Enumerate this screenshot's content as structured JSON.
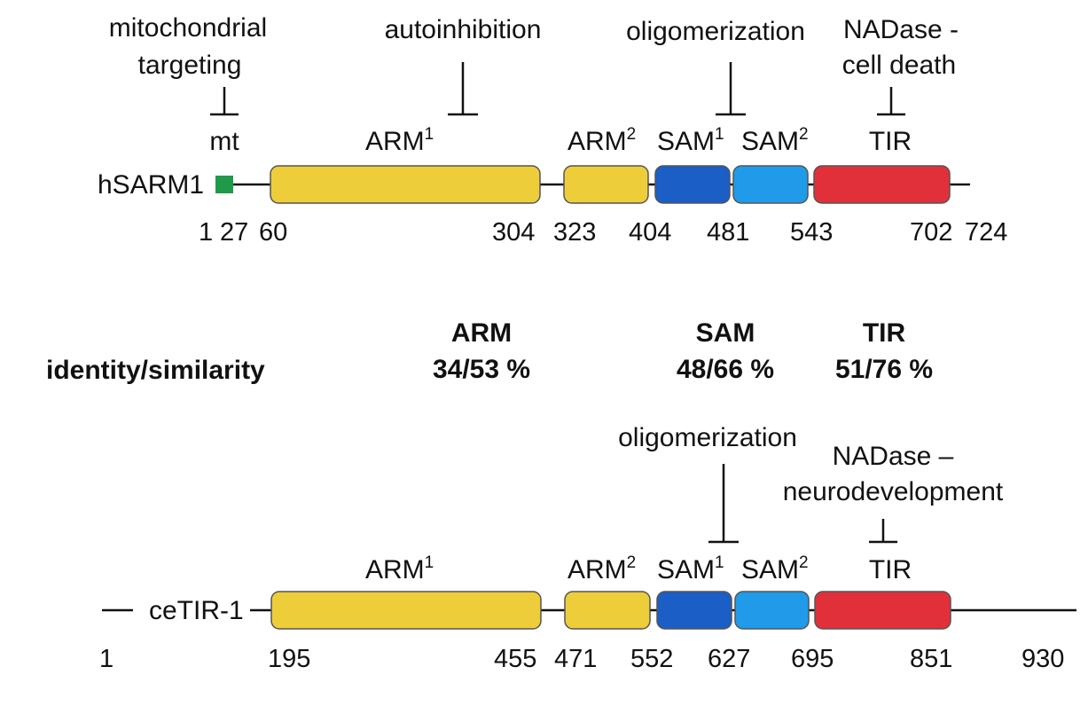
{
  "colors": {
    "mt": "#1f9a4a",
    "arm": "#eecd3a",
    "sam1": "#1a5ec6",
    "sam2": "#1f9bea",
    "tir": "#e2303a",
    "line": "#111111"
  },
  "hsarm1": {
    "name": "hSARM1",
    "domain_labels": {
      "mt": "mt",
      "arm1": "ARM",
      "arm1_sup": "1",
      "arm2": "ARM",
      "arm2_sup": "2",
      "sam1": "SAM",
      "sam1_sup": "1",
      "sam2": "SAM",
      "sam2_sup": "2",
      "tir": "TIR"
    },
    "functions": {
      "mito_line1": "mitochondrial",
      "mito_line2": "targeting",
      "autoinhibition": "autoinhibition",
      "oligomerization": "oligomerization",
      "nadase_line1": "NADase -",
      "nadase_line2": "cell death"
    },
    "positions": [
      "1",
      "27",
      "60",
      "304",
      "323",
      "404",
      "481",
      "543",
      "702",
      "724"
    ]
  },
  "comparison": {
    "row_label": "identity/similarity",
    "arm_title": "ARM",
    "arm_value": "34/53 %",
    "sam_title": "SAM",
    "sam_value": "48/66 %",
    "tir_title": "TIR",
    "tir_value": "51/76 %"
  },
  "cetir1": {
    "name": "ceTIR-1",
    "domain_labels": {
      "arm1": "ARM",
      "arm1_sup": "1",
      "arm2": "ARM",
      "arm2_sup": "2",
      "sam1": "SAM",
      "sam1_sup": "1",
      "sam2": "SAM",
      "sam2_sup": "2",
      "tir": "TIR"
    },
    "functions": {
      "oligomerization": "oligomerization",
      "nadase_line1": "NADase –",
      "nadase_line2": "neurodevelopment"
    },
    "positions": [
      "1",
      "195",
      "455",
      "471",
      "552",
      "627",
      "695",
      "851",
      "930"
    ]
  }
}
